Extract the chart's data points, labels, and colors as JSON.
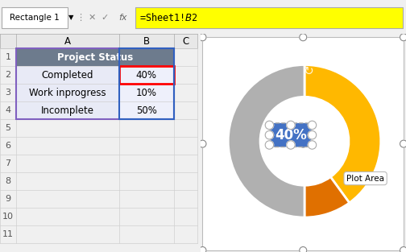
{
  "formula_bar_text": "=Sheet1!$B$2",
  "name_box_text": "Rectangle 1",
  "header_bg": "#6d7b8d",
  "header_text_color": "#ffffff",
  "donut_values": [
    40,
    10,
    50
  ],
  "donut_colors": [
    "#FFB800",
    "#E07000",
    "#B0B0B0"
  ],
  "donut_label": "40%",
  "donut_label_bg": "#4472C4",
  "donut_label_text_color": "#ffffff",
  "plot_area_label": "Plot Area",
  "bg_color": "#f0f0f0",
  "cell_bg_a": "#e8eaf6",
  "cell_bg_b": "#eef0fb",
  "selected_cell_border": "#ff0000",
  "grid_line_color": "#d0d0d0",
  "col_header_bg": "#e0e0e0",
  "row_num_color": "#555555",
  "chart_bg": "#ffffff",
  "chart_border": "#aaaaaa",
  "handle_color": "#888888",
  "selection_border_a": "#9370db",
  "selection_border_b": "#4169e1"
}
